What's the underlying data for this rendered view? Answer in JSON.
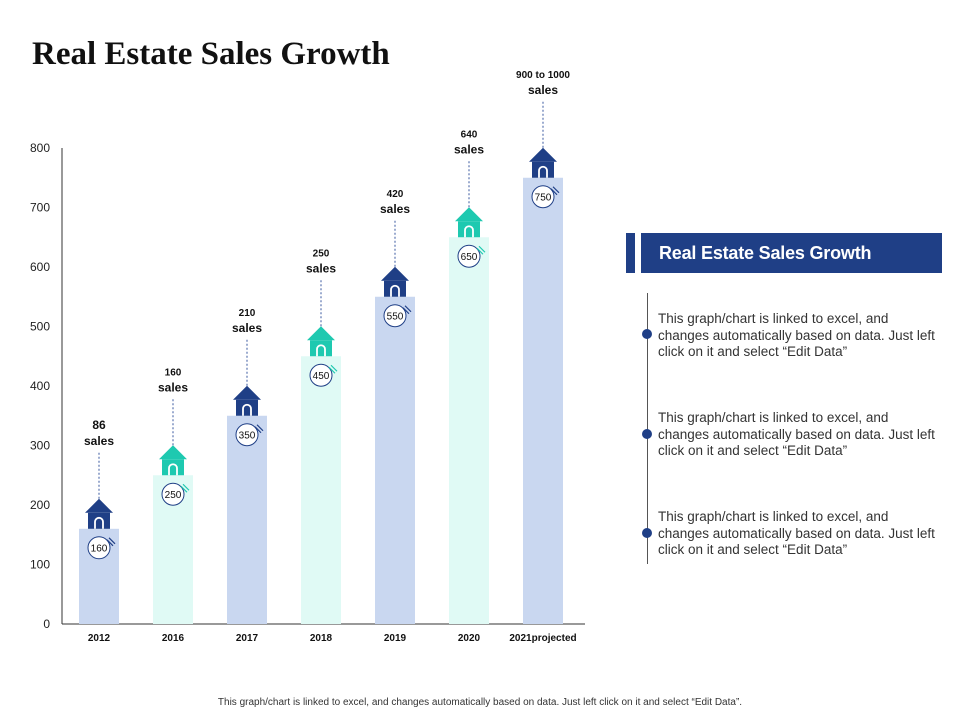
{
  "title": "Real Estate Sales Growth",
  "chart_data": {
    "type": "bar",
    "title": "Real Estate Sales Growth",
    "categories": [
      "2012",
      "2016",
      "2017",
      "2018",
      "2019",
      "2020",
      "2021projected"
    ],
    "values": [
      160,
      250,
      350,
      450,
      550,
      650,
      750
    ],
    "value_labels": [
      "160",
      "250",
      "350",
      "450",
      "550",
      "650",
      "750"
    ],
    "annotations": [
      {
        "line1": "86",
        "line2": "sales"
      },
      {
        "line1": "160",
        "line2": "sales"
      },
      {
        "line1": "210",
        "line2": "sales"
      },
      {
        "line1": "250",
        "line2": "sales"
      },
      {
        "line1": "420",
        "line2": "sales"
      },
      {
        "line1": "640",
        "line2": "sales"
      },
      {
        "line1": "900 to 1000",
        "line2": "sales"
      }
    ],
    "ylim": [
      0,
      800
    ],
    "yticks": [
      0,
      100,
      200,
      300,
      400,
      500,
      600,
      700,
      800
    ],
    "xlabel": "",
    "ylabel": "",
    "grid": false,
    "colors": {
      "bar_blue": "#c9d7f0",
      "bar_mint": "#e0faf5",
      "house_navy": "#1f3f86",
      "house_teal": "#1ec9b0",
      "axis": "#333333"
    }
  },
  "side_panel": {
    "header": "Real Estate Sales Growth",
    "items": [
      {
        "text": "This graph/chart is linked to excel, and changes automatically based on data. Just left click on it and select “Edit Data”"
      },
      {
        "text": "This graph/chart is linked to excel, and changes automatically based on data. Just left click on it and select “Edit Data”"
      },
      {
        "text": "This graph/chart is linked to excel, and changes automatically based on data. Just left click on it and select “Edit Data”"
      }
    ]
  },
  "footer": "This graph/chart is linked to excel, and changes automatically based on data. Just left click on it and select “Edit Data”."
}
